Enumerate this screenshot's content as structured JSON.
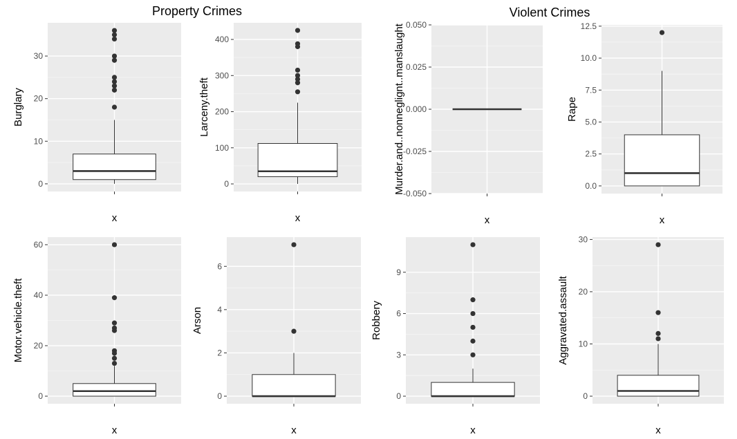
{
  "groups": [
    {
      "title": "Property Crimes"
    },
    {
      "title": "Violent Crimes"
    }
  ],
  "colors": {
    "panel_bg": "#ebebeb",
    "grid_major": "#ffffff",
    "grid_minor": "#f5f5f5",
    "box_fill": "#ffffff",
    "box_stroke": "#333333",
    "outlier": "#333333",
    "tick_text": "#4d4d4d"
  },
  "chart_data": [
    {
      "type": "box",
      "ylabel": "Burglary",
      "xlabel": "x",
      "ylim": [
        -1.8,
        37.8
      ],
      "ticks": [
        0,
        10,
        20,
        30
      ],
      "tick_labels": [
        "0",
        "10",
        "20",
        "30"
      ],
      "box": {
        "min": 0,
        "q1": 1,
        "median": 3,
        "q3": 7,
        "max": 15
      },
      "outliers": [
        18,
        22,
        23,
        24,
        25,
        29,
        30,
        34,
        35,
        36
      ]
    },
    {
      "type": "box",
      "ylabel": "Larceny.theft",
      "xlabel": "x",
      "ylim": [
        -21,
        446
      ],
      "ticks": [
        0,
        100,
        200,
        300,
        400
      ],
      "tick_labels": [
        "0",
        "100",
        "200",
        "300",
        "400"
      ],
      "box": {
        "min": 0,
        "q1": 20,
        "median": 35,
        "q3": 112,
        "max": 225
      },
      "outliers": [
        255,
        280,
        290,
        300,
        315,
        380,
        388,
        425
      ]
    },
    {
      "type": "box",
      "ylabel": "Murder.and..nonneglignt..manslaught",
      "xlabel": "x",
      "ylim": [
        -0.05,
        0.05
      ],
      "ticks": [
        -0.05,
        -0.025,
        0,
        0.025,
        0.05
      ],
      "tick_labels": [
        "-0.050",
        "-0.025",
        "0.000",
        "0.025",
        "0.050"
      ],
      "box": {
        "min": 0,
        "q1": 0,
        "median": 0,
        "q3": 0,
        "max": 0
      },
      "outliers": []
    },
    {
      "type": "box",
      "ylabel": "Rape",
      "xlabel": "x",
      "ylim": [
        -0.6,
        12.6
      ],
      "ticks": [
        0,
        2.5,
        5,
        7.5,
        10,
        12.5
      ],
      "tick_labels": [
        "0.0",
        "2.5",
        "5.0",
        "7.5",
        "10.0",
        "12.5"
      ],
      "box": {
        "min": 0,
        "q1": 0,
        "median": 1,
        "q3": 4,
        "max": 9
      },
      "outliers": [
        12
      ]
    },
    {
      "type": "box",
      "ylabel": "Motor.vehicle.theft",
      "xlabel": "x",
      "ylim": [
        -3,
        63
      ],
      "ticks": [
        0,
        20,
        40,
        60
      ],
      "tick_labels": [
        "0",
        "20",
        "40",
        "60"
      ],
      "box": {
        "min": 0,
        "q1": 0,
        "median": 2,
        "q3": 5,
        "max": 12
      },
      "outliers": [
        13,
        15,
        17,
        18,
        26,
        27,
        29,
        39,
        60
      ]
    },
    {
      "type": "box",
      "ylabel": "Arson",
      "xlabel": "x",
      "ylim": [
        -0.35,
        7.35
      ],
      "ticks": [
        0,
        2,
        4,
        6
      ],
      "tick_labels": [
        "0",
        "2",
        "4",
        "6"
      ],
      "box": {
        "min": 0,
        "q1": 0,
        "median": 0,
        "q3": 1,
        "max": 2
      },
      "outliers": [
        3,
        7
      ]
    },
    {
      "type": "box",
      "ylabel": "Robbery",
      "xlabel": "x",
      "ylim": [
        -0.55,
        11.55
      ],
      "ticks": [
        0,
        3,
        6,
        9
      ],
      "tick_labels": [
        "0",
        "3",
        "6",
        "9"
      ],
      "box": {
        "min": 0,
        "q1": 0,
        "median": 0,
        "q3": 1,
        "max": 2
      },
      "outliers": [
        3,
        4,
        5,
        6,
        7,
        11
      ]
    },
    {
      "type": "box",
      "ylabel": "Aggravated.assault",
      "xlabel": "x",
      "ylim": [
        -1.45,
        30.45
      ],
      "ticks": [
        0,
        10,
        20,
        30
      ],
      "tick_labels": [
        "0",
        "10",
        "20",
        "30"
      ],
      "box": {
        "min": 0,
        "q1": 0,
        "median": 1,
        "q3": 4,
        "max": 10
      },
      "outliers": [
        11,
        12,
        16,
        29
      ]
    }
  ]
}
